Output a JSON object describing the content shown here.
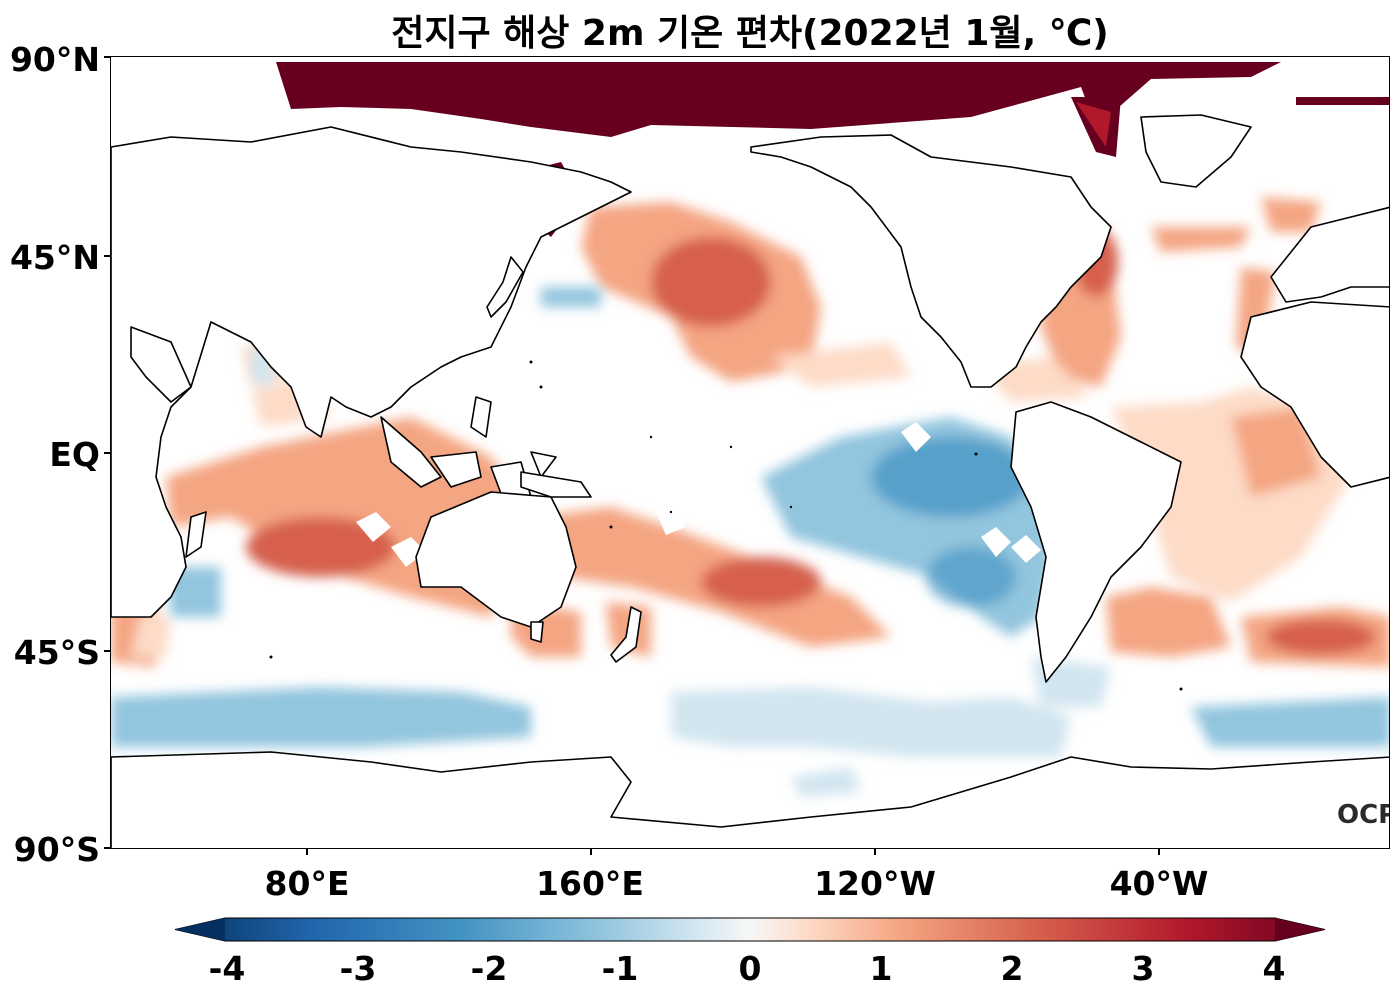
{
  "title": "전지구 해상 2m 기온 편차(2022년 1월, ℃)",
  "y_axis": {
    "labels": [
      "90°N",
      "45°N",
      "EQ",
      "45°S",
      "90°S"
    ]
  },
  "x_axis": {
    "labels": [
      "80°E",
      "160°E",
      "120°W",
      "40°W"
    ]
  },
  "colorbar": {
    "labels": [
      "-4",
      "-3",
      "-2",
      "-1",
      "0",
      "1",
      "2",
      "3",
      "4"
    ],
    "min": -4,
    "max": 4,
    "colormap": "RdBu_r",
    "extend": "both",
    "colors": [
      "#053061",
      "#2166ac",
      "#4393c3",
      "#92c5de",
      "#d1e5f0",
      "#f7f7f7",
      "#fddbc7",
      "#f4a582",
      "#d6604d",
      "#b2182b",
      "#67001f"
    ]
  },
  "logo": "OCPC",
  "colors": {
    "warm_strong": "#67001f",
    "warm_mid": "#d6604d",
    "warm_light": "#f4a582",
    "cool_light": "#92c5de",
    "cool_mid": "#4393c3"
  }
}
